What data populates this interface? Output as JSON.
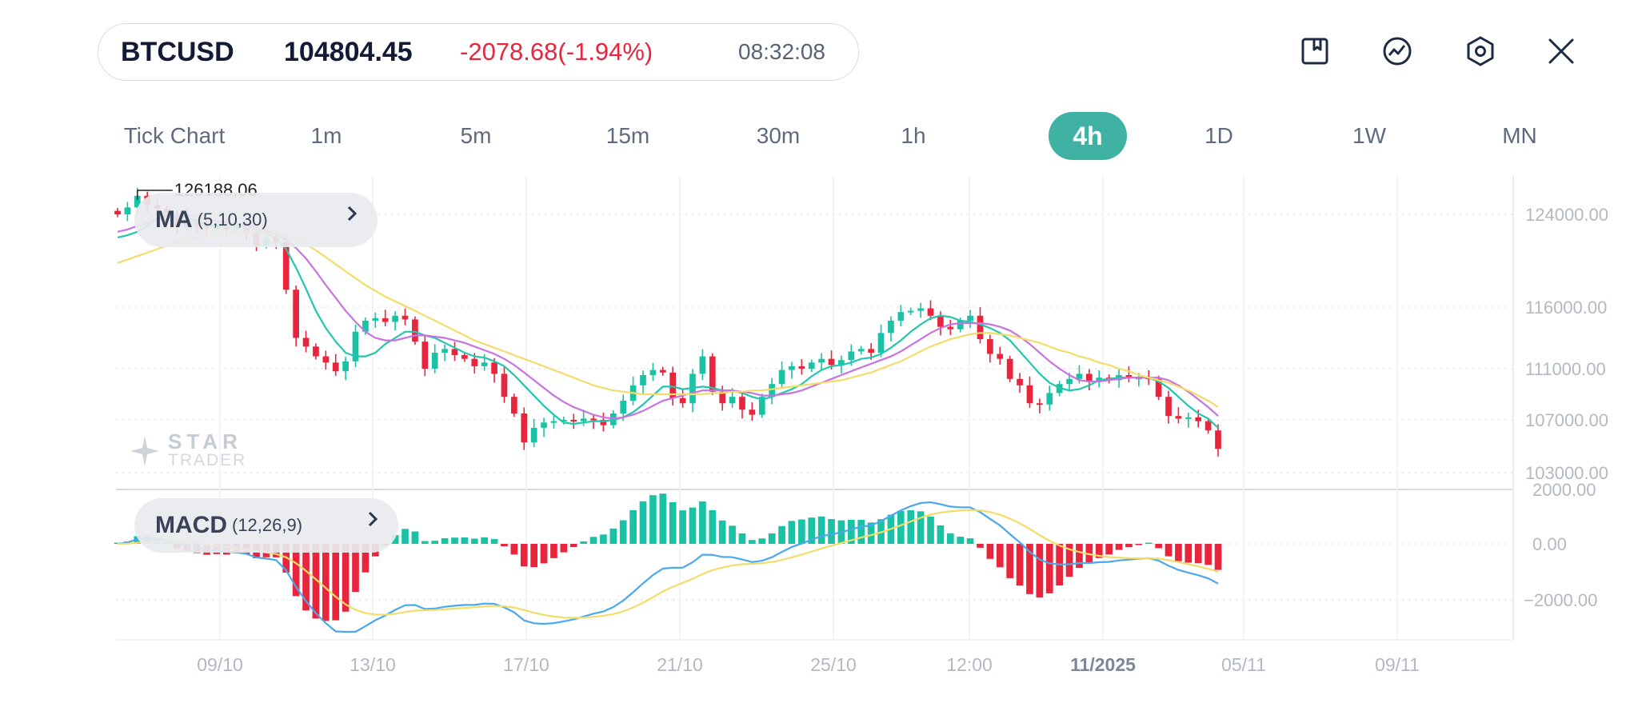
{
  "header": {
    "symbol": "BTCUSD",
    "price": "104804.45",
    "change": "-2078.68(-1.94%)",
    "time": "08:32:08",
    "colors": {
      "down": "#e8253d",
      "up": "#19c2a5",
      "accent": "#3fb2a3"
    },
    "icons": [
      "bookmark-icon",
      "indicator-icon",
      "settings-icon",
      "close-icon"
    ]
  },
  "timeframes": {
    "items": [
      "Tick Chart",
      "1m",
      "5m",
      "15m",
      "30m",
      "1h",
      "4h",
      "1D",
      "1W",
      "MN"
    ],
    "active": "4h"
  },
  "watermark": {
    "line1": "STAR",
    "line2": "TRADER"
  },
  "indicators": {
    "ma": {
      "name": "MA",
      "params": "(5,10,30)"
    },
    "macd": {
      "name": "MACD",
      "params": "(12,26,9)"
    }
  },
  "chart_data": [
    {
      "type": "candlestick",
      "high_label": "126188.06",
      "y_ticks": [
        "124000.00",
        "116000.00",
        "111000.00",
        "107000.00",
        "103000.00"
      ],
      "x_ticks": [
        "09/10",
        "13/10",
        "17/10",
        "21/10",
        "25/10",
        "12:00",
        "11/2025",
        "05/11",
        "09/11"
      ],
      "close_series": [
        124000,
        124600,
        125600,
        124800,
        124500,
        123800,
        122900,
        123300,
        123000,
        122800,
        123100,
        122700,
        123000,
        122400,
        121300,
        122000,
        121600,
        117500,
        113500,
        112800,
        112000,
        111500,
        110800,
        111600,
        114000,
        114900,
        115100,
        114800,
        115300,
        115000,
        113200,
        111000,
        112300,
        112600,
        112100,
        111800,
        111200,
        111500,
        110600,
        108800,
        107500,
        105300,
        106400,
        106800,
        106900,
        107000,
        106900,
        107100,
        107000,
        106600,
        107500,
        108500,
        109700,
        110500,
        110900,
        110700,
        108700,
        108300,
        110600,
        112000,
        109200,
        108300,
        108800,
        107800,
        107400,
        108800,
        109800,
        110900,
        111200,
        111000,
        111500,
        111800,
        111300,
        111700,
        112400,
        112600,
        112300,
        113900,
        114900,
        115600,
        115700,
        115900,
        115300,
        114400,
        114200,
        114900,
        115300,
        113400,
        112200,
        111800,
        110200,
        109700,
        108300,
        108200,
        109100,
        109800,
        110200,
        110600,
        110000,
        110300,
        110100,
        110500,
        110300,
        110300,
        110200,
        108800,
        107300,
        107100,
        107200,
        106900,
        106200,
        104804
      ],
      "ma_series": [
        {
          "name": "MA5",
          "color": "#21c7ac",
          "values": [
            122000,
            122200,
            122500,
            123000,
            123700,
            124000,
            124000,
            123700,
            123400,
            123100,
            122900,
            123000,
            123000,
            122900,
            122700,
            122400,
            121900,
            121000,
            119400,
            117600,
            115700,
            114300,
            113200,
            112300,
            112000,
            112000,
            112300,
            113000,
            113500,
            114000,
            114000,
            113700,
            113500,
            113100,
            112700,
            112300,
            112000,
            111900,
            111600,
            111200,
            110500,
            109700,
            108900,
            108100,
            107400,
            106800,
            106700,
            106800,
            106900,
            106900,
            107000,
            107200,
            107600,
            108200,
            108900,
            109600,
            109600,
            109400,
            109500,
            109600,
            109500,
            109300,
            109300,
            109100,
            108800,
            108600,
            108800,
            109100,
            109400,
            109800,
            110400,
            110900,
            111200,
            111300,
            111500,
            111800,
            111900,
            112200,
            112700,
            113300,
            114000,
            114600,
            115100,
            115300,
            115200,
            114900,
            114800,
            114600,
            114300,
            113900,
            113300,
            112400,
            111500,
            110600,
            109900,
            109500,
            109300,
            109400,
            109700,
            110100,
            110200,
            110300,
            110300,
            110300,
            110300,
            110000,
            109500,
            108800,
            108100,
            107500,
            107100,
            106400
          ],
          "scale": "price"
        },
        {
          "name": "MA10",
          "color": "#c873e0",
          "values": [
            122500,
            122700,
            123000,
            123300,
            123600,
            123800,
            123900,
            123900,
            123800,
            123600,
            123400,
            123300,
            123200,
            123100,
            122900,
            122600,
            122300,
            121800,
            121100,
            120200,
            119100,
            117900,
            116800,
            115700,
            114800,
            114000,
            113500,
            113300,
            113300,
            113500,
            113700,
            113700,
            113600,
            113500,
            113300,
            113100,
            112800,
            112500,
            112200,
            111800,
            111300,
            110700,
            110100,
            109500,
            108900,
            108400,
            108000,
            107700,
            107400,
            107200,
            107100,
            107200,
            107400,
            107700,
            108100,
            108500,
            108700,
            108900,
            109100,
            109300,
            109300,
            109300,
            109300,
            109200,
            109100,
            108900,
            108900,
            109000,
            109100,
            109300,
            109600,
            109900,
            110200,
            110500,
            110800,
            111100,
            111400,
            111700,
            112000,
            112400,
            112900,
            113400,
            113900,
            114300,
            114600,
            114700,
            114700,
            114700,
            114600,
            114400,
            114100,
            113600,
            113000,
            112300,
            111600,
            111000,
            110500,
            110100,
            110000,
            110000,
            110100,
            110200,
            110300,
            110300,
            110300,
            110300,
            110100,
            109700,
            109200,
            108600,
            108000,
            107300
          ],
          "scale": "price"
        },
        {
          "name": "MA30",
          "color": "#f2dc6a",
          "values": [
            119800,
            120100,
            120400,
            120700,
            121000,
            121300,
            121600,
            121800,
            122000,
            122200,
            122300,
            122400,
            122500,
            122500,
            122500,
            122400,
            122300,
            122100,
            121800,
            121400,
            120900,
            120300,
            119700,
            119100,
            118500,
            117900,
            117400,
            116900,
            116500,
            116100,
            115700,
            115300,
            114900,
            114500,
            114100,
            113700,
            113300,
            113000,
            112700,
            112400,
            112100,
            111800,
            111500,
            111200,
            110900,
            110600,
            110300,
            110000,
            109700,
            109500,
            109300,
            109200,
            109100,
            109000,
            109000,
            109000,
            109000,
            109000,
            109000,
            109000,
            109100,
            109100,
            109200,
            109200,
            109300,
            109300,
            109400,
            109500,
            109600,
            109700,
            109800,
            109900,
            110000,
            110100,
            110300,
            110500,
            110700,
            111000,
            111300,
            111600,
            112000,
            112400,
            112800,
            113100,
            113400,
            113600,
            113800,
            113900,
            113900,
            113800,
            113700,
            113500,
            113300,
            113100,
            112800,
            112500,
            112300,
            112000,
            111800,
            111500,
            111300,
            111000,
            110800,
            110500,
            110300,
            110100,
            109900,
            109600,
            109300,
            108900,
            108500,
            108000
          ],
          "scale": "price"
        }
      ]
    },
    {
      "type": "macd",
      "y_ticks": [
        "2000.00",
        "0.00",
        "−2000.00"
      ]
    }
  ]
}
